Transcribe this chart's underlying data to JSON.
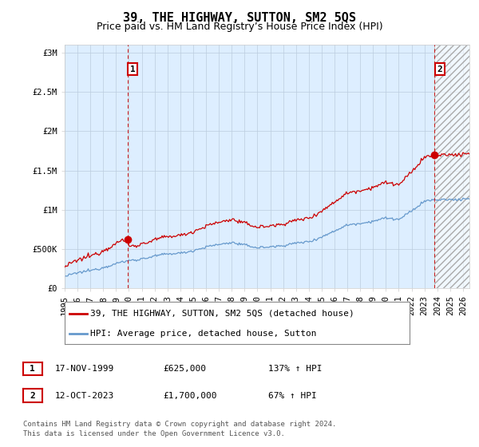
{
  "title": "39, THE HIGHWAY, SUTTON, SM2 5QS",
  "subtitle": "Price paid vs. HM Land Registry’s House Price Index (HPI)",
  "ylabel_ticks": [
    "£0",
    "£500K",
    "£1M",
    "£1.5M",
    "£2M",
    "£2.5M",
    "£3M"
  ],
  "ytick_values": [
    0,
    500000,
    1000000,
    1500000,
    2000000,
    2500000,
    3000000
  ],
  "ylim": [
    0,
    3100000
  ],
  "xlim_start": 1995.0,
  "xlim_end": 2026.5,
  "hatch_start": 2023.78,
  "sale1_x": 1999.88,
  "sale1_y": 625000,
  "sale1_label": "1",
  "sale2_x": 2023.78,
  "sale2_y": 1700000,
  "sale2_label": "2",
  "red_line_color": "#cc0000",
  "blue_line_color": "#6699cc",
  "plot_bg_color": "#ddeeff",
  "annotation_box_color": "#cc0000",
  "grid_color": "#bbccdd",
  "background_color": "#ffffff",
  "legend_line1": "39, THE HIGHWAY, SUTTON, SM2 5QS (detached house)",
  "legend_line2": "HPI: Average price, detached house, Sutton",
  "table_row1": [
    "1",
    "17-NOV-1999",
    "£625,000",
    "137% ↑ HPI"
  ],
  "table_row2": [
    "2",
    "12-OCT-2023",
    "£1,700,000",
    "67% ↑ HPI"
  ],
  "footer": "Contains HM Land Registry data © Crown copyright and database right 2024.\nThis data is licensed under the Open Government Licence v3.0.",
  "title_fontsize": 11,
  "subtitle_fontsize": 9,
  "tick_fontsize": 7.5,
  "legend_fontsize": 8,
  "table_fontsize": 8,
  "footer_fontsize": 6.5
}
